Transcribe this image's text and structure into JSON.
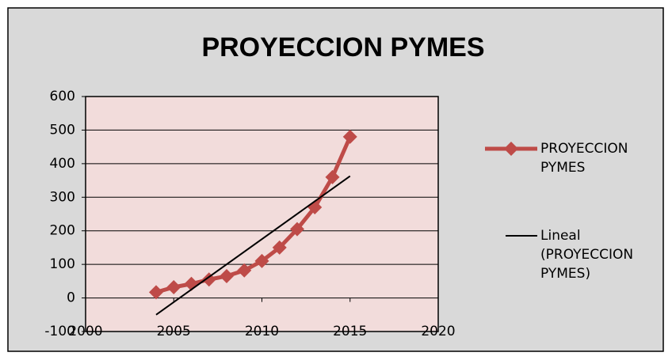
{
  "chart_data": {
    "type": "line",
    "title": "PROYECCION PYMES",
    "series": [
      {
        "name": "PROYECCION PYMES",
        "color": "#be4b48",
        "marker": "diamond",
        "x": [
          2004,
          2005,
          2006,
          2007,
          2008,
          2009,
          2010,
          2011,
          2012,
          2013,
          2014,
          2015
        ],
        "values": [
          17,
          32,
          42,
          55,
          65,
          82,
          110,
          150,
          205,
          270,
          360,
          480
        ]
      },
      {
        "name": "Lineal (PROYECCION PYMES)",
        "color": "#000000",
        "marker": "none",
        "x": [
          2004,
          2015
        ],
        "values": [
          -50,
          363
        ]
      }
    ],
    "xlim": [
      2000,
      2020
    ],
    "xticks": [
      2000,
      2005,
      2010,
      2015,
      2020
    ],
    "ylim": [
      -100,
      600
    ],
    "yticks": [
      -100,
      0,
      100,
      200,
      300,
      400,
      500,
      600
    ],
    "grid": true,
    "legend": "right"
  }
}
